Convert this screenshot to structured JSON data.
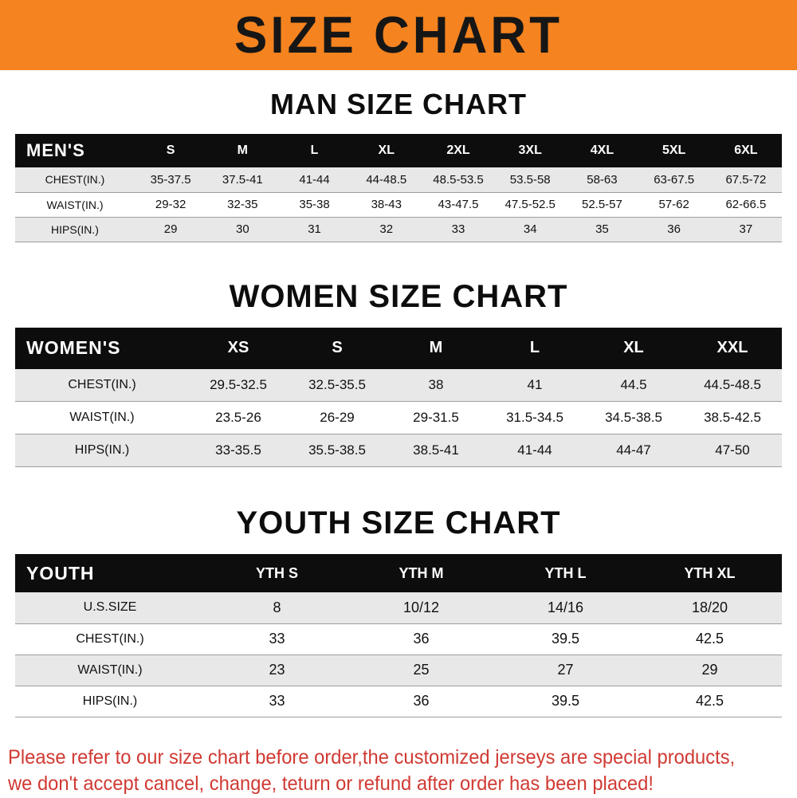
{
  "banner": {
    "title": "SIZE CHART",
    "background_color": "#f5831f",
    "text_color": "#161616"
  },
  "sections": [
    {
      "heading": "MAN SIZE CHART",
      "table": {
        "label": "MEN'S",
        "columns": [
          "S",
          "M",
          "L",
          "XL",
          "2XL",
          "3XL",
          "4XL",
          "5XL",
          "6XL"
        ],
        "rows": [
          {
            "label": "CHEST(IN.)",
            "values": [
              "35-37.5",
              "37.5-41",
              "41-44",
              "44-48.5",
              "48.5-53.5",
              "53.5-58",
              "58-63",
              "63-67.5",
              "67.5-72"
            ]
          },
          {
            "label": "WAIST(IN.)",
            "values": [
              "29-32",
              "32-35",
              "35-38",
              "38-43",
              "43-47.5",
              "47.5-52.5",
              "52.5-57",
              "57-62",
              "62-66.5"
            ]
          },
          {
            "label": "HIPS(IN.)",
            "values": [
              "29",
              "30",
              "31",
              "32",
              "33",
              "34",
              "35",
              "36",
              "37"
            ]
          }
        ]
      }
    },
    {
      "heading": "WOMEN SIZE CHART",
      "table": {
        "label": "WOMEN'S",
        "columns": [
          "XS",
          "S",
          "M",
          "L",
          "XL",
          "XXL"
        ],
        "rows": [
          {
            "label": "CHEST(IN.)",
            "values": [
              "29.5-32.5",
              "32.5-35.5",
              "38",
              "41",
              "44.5",
              "44.5-48.5"
            ]
          },
          {
            "label": "WAIST(IN.)",
            "values": [
              "23.5-26",
              "26-29",
              "29-31.5",
              "31.5-34.5",
              "34.5-38.5",
              "38.5-42.5"
            ]
          },
          {
            "label": "HIPS(IN.)",
            "values": [
              "33-35.5",
              "35.5-38.5",
              "38.5-41",
              "41-44",
              "44-47",
              "47-50"
            ]
          }
        ]
      }
    },
    {
      "heading": "YOUTH SIZE CHART",
      "table": {
        "label": "YOUTH",
        "columns": [
          "YTH S",
          "YTH M",
          "YTH L",
          "YTH XL"
        ],
        "rows": [
          {
            "label": "U.S.SIZE",
            "values": [
              "8",
              "10/12",
              "14/16",
              "18/20"
            ]
          },
          {
            "label": "CHEST(IN.)",
            "values": [
              "33",
              "36",
              "39.5",
              "42.5"
            ]
          },
          {
            "label": "WAIST(IN.)",
            "values": [
              "23",
              "25",
              "27",
              "29"
            ]
          },
          {
            "label": "HIPS(IN.)",
            "values": [
              "33",
              "36",
              "39.5",
              "42.5"
            ]
          }
        ]
      }
    }
  ],
  "footer": {
    "line1": "Please refer to our size chart before order,the customized jerseys are special products,",
    "line2": "we don't accept cancel, change, teturn or refund after order has been placed!",
    "text_color": "#d03a33"
  }
}
